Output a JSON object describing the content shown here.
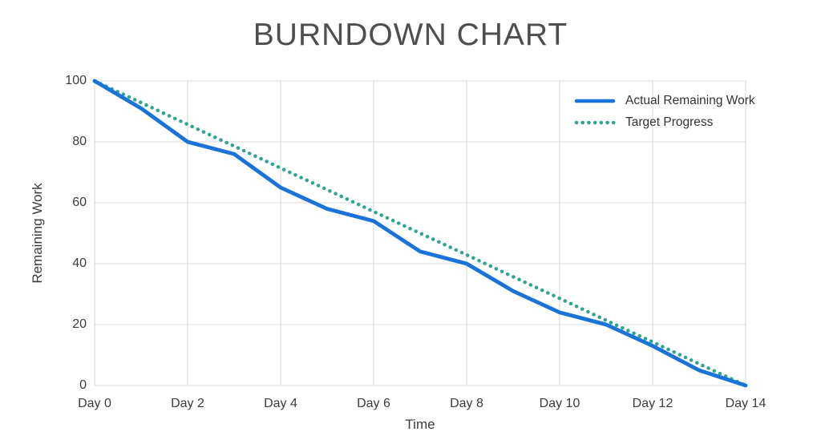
{
  "page": {
    "background": "#ffffff"
  },
  "colors": {
    "grid": "#d9d9d9",
    "title_text": "#4e4e4e",
    "axis_text": "#3c3c3c",
    "actual_blue": "#1a73d9",
    "target_teal": "#2ea493"
  },
  "chart_data": {
    "type": "line",
    "title": "BURNDOWN CHART",
    "xlabel": "Time",
    "ylabel": "Remaining Work",
    "xlim": [
      0,
      14
    ],
    "ylim": [
      0,
      100
    ],
    "grid": true,
    "legend_position": "top-right-inside",
    "x": [
      0,
      1,
      2,
      3,
      4,
      5,
      6,
      7,
      8,
      9,
      10,
      11,
      12,
      13,
      14
    ],
    "x_ticks": [
      {
        "day": 0,
        "label": "Day 0"
      },
      {
        "day": 2,
        "label": "Day 2"
      },
      {
        "day": 4,
        "label": "Day 4"
      },
      {
        "day": 6,
        "label": "Day 6"
      },
      {
        "day": 8,
        "label": "Day 8"
      },
      {
        "day": 10,
        "label": "Day 10"
      },
      {
        "day": 12,
        "label": "Day 12"
      },
      {
        "day": 14,
        "label": "Day 14"
      }
    ],
    "y_ticks": [
      0,
      20,
      40,
      60,
      80,
      100
    ],
    "series": [
      {
        "name": "Actual Remaining Work",
        "style": "solid",
        "color": "#1a73d9",
        "values": [
          100,
          91,
          80,
          76,
          65,
          58,
          54,
          44,
          40,
          31,
          24,
          20,
          13,
          5,
          0
        ]
      },
      {
        "name": "Target Progress",
        "style": "dotted",
        "color": "#2ea493",
        "values": [
          100,
          92.9,
          85.7,
          78.6,
          71.4,
          64.3,
          57.1,
          50,
          42.9,
          35.7,
          28.6,
          21.4,
          14.3,
          7.1,
          0
        ]
      }
    ]
  }
}
